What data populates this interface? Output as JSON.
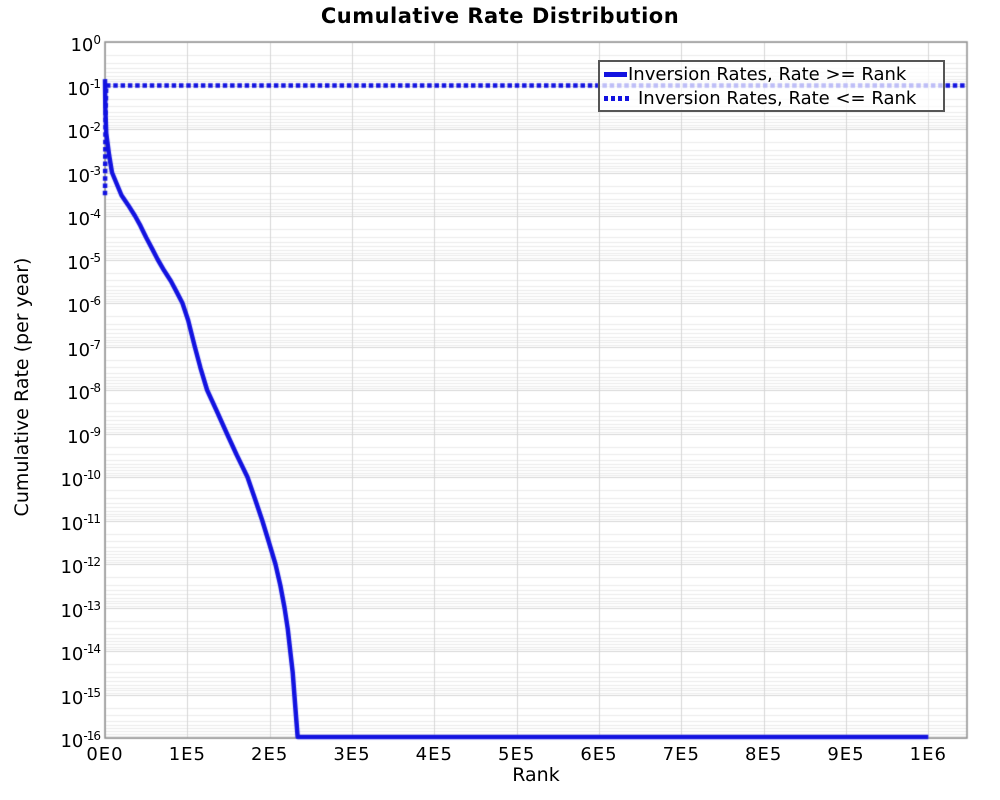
{
  "chart_data": {
    "type": "line",
    "title": "Cumulative Rate Distribution",
    "xlabel": "Rank",
    "ylabel": "Cumulative Rate (per year)",
    "x_axis": {
      "min": 0,
      "max": 1047000,
      "tick_values": [
        0,
        100000,
        200000,
        300000,
        400000,
        500000,
        600000,
        700000,
        800000,
        900000,
        1000000
      ],
      "tick_labels": [
        "0E0",
        "1E5",
        "2E5",
        "3E5",
        "4E5",
        "5E5",
        "6E5",
        "7E5",
        "8E5",
        "9E5",
        "1E6"
      ]
    },
    "y_axis": {
      "scale": "log",
      "max_exponent": 0,
      "min_exponent": -16,
      "tick_exponents": [
        "0",
        "-1",
        "-2",
        "-3",
        "-4",
        "-5",
        "-6",
        "-7",
        "-8",
        "-9",
        "-10",
        "-11",
        "-12",
        "-13",
        "-14",
        "-15",
        "-16"
      ]
    },
    "grid": {
      "major": true,
      "minor_horizontal": true
    },
    "legend_position": "top-right",
    "series": [
      {
        "name": "Inversion Rates, Rate >= Rank",
        "style": "solid",
        "color": "#1212e0",
        "points": [
          [
            0,
            0.14
          ],
          [
            400,
            0.03
          ],
          [
            1500,
            0.008
          ],
          [
            5000,
            0.0025
          ],
          [
            8500,
            0.001
          ],
          [
            20000,
            0.0003
          ],
          [
            28000,
            0.00018
          ],
          [
            36500,
            0.0001
          ],
          [
            43000,
            6e-05
          ],
          [
            50000,
            3.2e-05
          ],
          [
            57000,
            1.8e-05
          ],
          [
            64000,
            1e-05
          ],
          [
            72000,
            5.5e-06
          ],
          [
            80000,
            3.2e-06
          ],
          [
            87000,
            1.8e-06
          ],
          [
            94000,
            1e-06
          ],
          [
            101000,
            4e-07
          ],
          [
            109000,
            1e-07
          ],
          [
            116000,
            3.2e-08
          ],
          [
            124000,
            1e-08
          ],
          [
            136000,
            3.2e-09
          ],
          [
            148000,
            1e-09
          ],
          [
            160000,
            3.2e-10
          ],
          [
            173000,
            1e-10
          ],
          [
            182000,
            3.2e-11
          ],
          [
            191000,
            1e-11
          ],
          [
            199000,
            3.2e-12
          ],
          [
            207000,
            1e-12
          ],
          [
            213000,
            3.2e-13
          ],
          [
            218000,
            1e-13
          ],
          [
            222000,
            3.2e-14
          ],
          [
            225000,
            1e-14
          ],
          [
            228000,
            3.2e-15
          ],
          [
            230000,
            1e-15
          ],
          [
            232000,
            3.2e-16
          ],
          [
            234000,
            1e-16
          ],
          [
            1000000,
            1e-16
          ]
        ]
      },
      {
        "name": "Inversion Rates, Rate <= Rank",
        "style": "dotted",
        "color": "#1212e0",
        "points": [
          [
            0,
            0.0003
          ],
          [
            700,
            0.02
          ],
          [
            1500,
            0.1
          ],
          [
            1047000,
            0.1
          ]
        ]
      }
    ],
    "colors": {
      "series_blue": "#1212e0",
      "grid_major": "#d6d6d6",
      "grid_minor": "#ececec",
      "plot_border": "#8f8f8f",
      "legend_background_wash": "rgba(255,255,255,0.72)",
      "legend_border": "#555555",
      "background": "#ffffff",
      "text": "#000000"
    }
  }
}
